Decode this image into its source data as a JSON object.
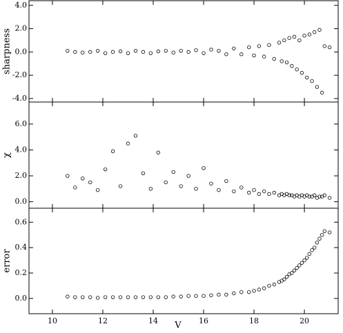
{
  "chart_data": [
    {
      "type": "scatter",
      "ylabel": "sharpness",
      "color": "#000000",
      "x": [
        10.6,
        10.9,
        11.2,
        11.5,
        11.8,
        12.1,
        12.4,
        12.7,
        13.0,
        13.3,
        13.6,
        13.9,
        14.2,
        14.5,
        14.8,
        15.1,
        15.4,
        15.7,
        16.0,
        16.3,
        16.6,
        16.9,
        17.2,
        17.5,
        17.8,
        18.0,
        18.2,
        18.4,
        18.6,
        18.8,
        19.0,
        19.1,
        19.2,
        19.3,
        19.4,
        19.5,
        19.6,
        19.7,
        19.8,
        19.9,
        20.0,
        20.1,
        20.2,
        20.3,
        20.4,
        20.5,
        20.6,
        20.7,
        20.8,
        21.0
      ],
      "values": [
        0.1,
        0.0,
        -0.05,
        0.0,
        0.1,
        -0.1,
        0.0,
        0.05,
        -0.1,
        0.1,
        0.0,
        -0.1,
        0.05,
        0.1,
        -0.05,
        0.1,
        0.0,
        0.15,
        -0.1,
        0.2,
        0.1,
        -0.2,
        0.3,
        -0.2,
        0.4,
        -0.3,
        0.5,
        -0.4,
        0.6,
        -0.6,
        0.8,
        -0.8,
        1.0,
        -0.9,
        1.2,
        -1.2,
        1.3,
        -1.5,
        1.0,
        -1.8,
        1.4,
        -2.2,
        1.5,
        -2.5,
        1.7,
        -3.0,
        1.9,
        -3.5,
        0.5,
        0.4
      ],
      "xlim": [
        9.07,
        21.34
      ],
      "xticks": [
        10,
        12,
        14,
        16,
        18,
        20
      ],
      "ylim": [
        -4.3,
        4.4
      ],
      "yticks": [
        {
          "value": -4,
          "label": "-4.0"
        },
        {
          "value": -2,
          "label": "-2.0"
        },
        {
          "value": 0,
          "label": "0.0"
        },
        {
          "value": 2,
          "label": "2.0"
        },
        {
          "value": 4,
          "label": "4.0"
        }
      ]
    },
    {
      "type": "scatter",
      "ylabel": "χ",
      "color": "#000000",
      "x": [
        10.6,
        10.9,
        11.2,
        11.5,
        11.8,
        12.1,
        12.4,
        12.7,
        13.0,
        13.3,
        13.6,
        13.9,
        14.2,
        14.5,
        14.8,
        15.1,
        15.4,
        15.7,
        16.0,
        16.3,
        16.6,
        16.9,
        17.2,
        17.5,
        17.8,
        18.0,
        18.2,
        18.4,
        18.6,
        18.8,
        19.0,
        19.1,
        19.2,
        19.3,
        19.4,
        19.5,
        19.6,
        19.7,
        19.8,
        19.9,
        20.0,
        20.1,
        20.2,
        20.3,
        20.4,
        20.5,
        20.6,
        20.7,
        20.8,
        21.0
      ],
      "values": [
        2.0,
        1.1,
        1.8,
        1.5,
        0.9,
        2.5,
        3.9,
        1.2,
        4.5,
        5.1,
        2.2,
        1.0,
        3.8,
        1.5,
        2.3,
        1.2,
        2.0,
        1.0,
        2.6,
        1.4,
        0.9,
        1.6,
        0.8,
        1.1,
        0.7,
        0.9,
        0.6,
        0.8,
        0.6,
        0.7,
        0.5,
        0.6,
        0.5,
        0.6,
        0.5,
        0.5,
        0.4,
        0.5,
        0.4,
        0.5,
        0.4,
        0.5,
        0.4,
        0.4,
        0.5,
        0.3,
        0.4,
        0.4,
        0.5,
        0.3
      ],
      "xlim": [
        9.07,
        21.34
      ],
      "xticks": [
        10,
        12,
        14,
        16,
        18,
        20
      ],
      "ylim": [
        -0.5,
        7.7
      ],
      "yticks": [
        {
          "value": 0,
          "label": "0.0"
        },
        {
          "value": 2,
          "label": "2.0"
        },
        {
          "value": 4,
          "label": "4.0"
        },
        {
          "value": 6,
          "label": "6.0"
        }
      ]
    },
    {
      "type": "scatter",
      "ylabel": "error",
      "xlabel": "V",
      "color": "#000000",
      "x": [
        10.6,
        10.9,
        11.2,
        11.5,
        11.8,
        12.1,
        12.4,
        12.7,
        13.0,
        13.3,
        13.6,
        13.9,
        14.2,
        14.5,
        14.8,
        15.1,
        15.4,
        15.7,
        16.0,
        16.3,
        16.6,
        16.9,
        17.2,
        17.5,
        17.8,
        18.0,
        18.2,
        18.4,
        18.6,
        18.8,
        19.0,
        19.1,
        19.2,
        19.3,
        19.4,
        19.5,
        19.6,
        19.7,
        19.8,
        19.9,
        20.0,
        20.1,
        20.2,
        20.3,
        20.4,
        20.5,
        20.6,
        20.7,
        20.8,
        21.0
      ],
      "values": [
        0.015,
        0.01,
        0.01,
        0.01,
        0.005,
        0.01,
        0.01,
        0.01,
        0.01,
        0.01,
        0.01,
        0.01,
        0.01,
        0.01,
        0.015,
        0.015,
        0.02,
        0.02,
        0.02,
        0.025,
        0.03,
        0.03,
        0.04,
        0.05,
        0.05,
        0.06,
        0.07,
        0.08,
        0.1,
        0.11,
        0.13,
        0.14,
        0.15,
        0.17,
        0.19,
        0.2,
        0.22,
        0.24,
        0.26,
        0.28,
        0.3,
        0.32,
        0.35,
        0.38,
        0.4,
        0.44,
        0.47,
        0.5,
        0.53,
        0.52
      ],
      "xlim": [
        9.07,
        21.34
      ],
      "xticks": [
        10,
        12,
        14,
        16,
        18,
        20
      ],
      "ylim": [
        -0.12,
        0.71
      ],
      "yticks": [
        {
          "value": 0,
          "label": "0.0"
        },
        0.2,
        0.4,
        0.6
      ]
    }
  ]
}
